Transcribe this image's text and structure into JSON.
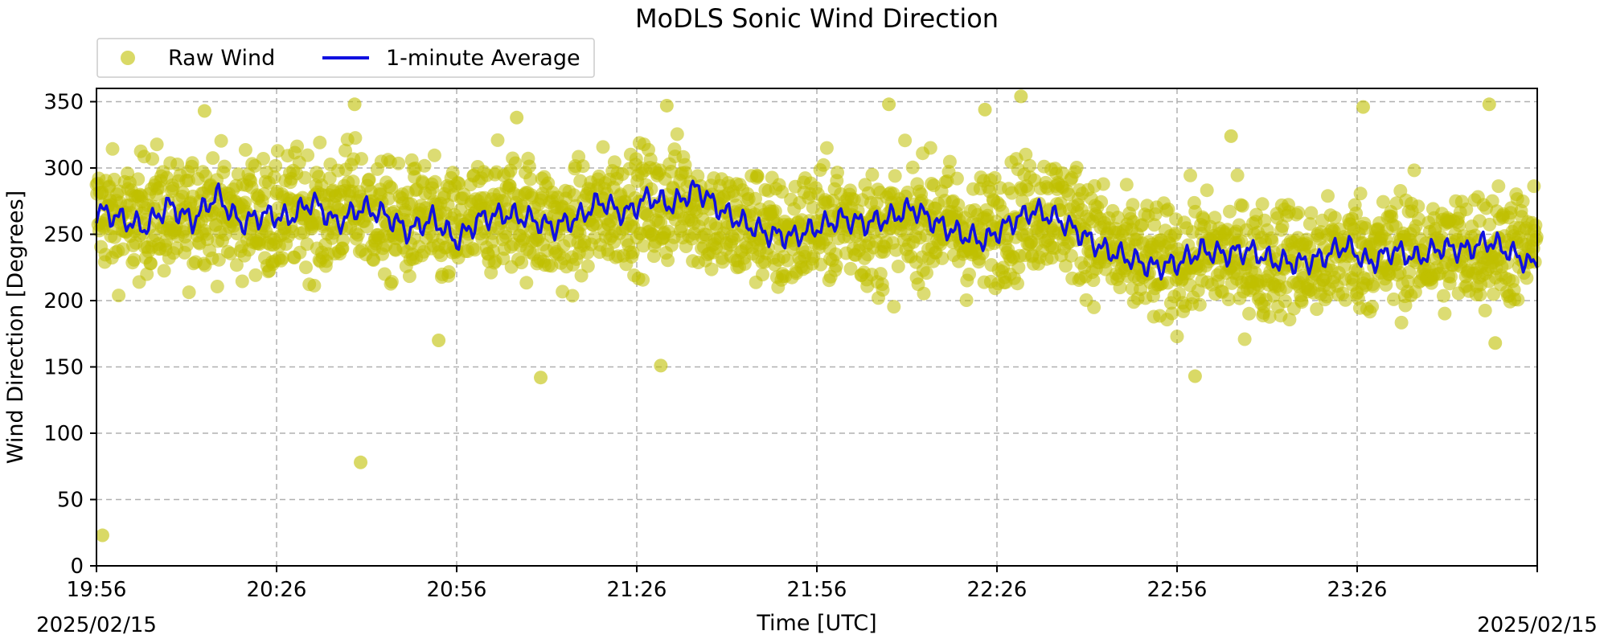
{
  "chart_data": {
    "type": "scatter",
    "title": "MoDLS Sonic Wind Direction",
    "xlabel": "Time [UTC]",
    "ylabel": "Wind Direction [Degrees]",
    "date_left": "2025/02/15",
    "date_right": "2025/02/15",
    "x_ticks": [
      "19:56",
      "20:26",
      "20:56",
      "21:26",
      "21:56",
      "22:26",
      "22:56",
      "23:26"
    ],
    "x_range": [
      "19:56",
      "23:56"
    ],
    "y_ticks": [
      0,
      50,
      100,
      150,
      200,
      250,
      300,
      350
    ],
    "ylim": [
      0,
      360
    ],
    "grid": true,
    "legend_position": "top-left",
    "series": [
      {
        "name": "Raw Wind",
        "kind": "scatter",
        "color": "#bfbf00",
        "x": [
          "19:58",
          "20:02",
          "20:06",
          "20:10",
          "20:14",
          "20:18",
          "20:22",
          "20:26",
          "20:30",
          "20:34",
          "20:38",
          "20:42",
          "20:46",
          "20:50",
          "20:54",
          "20:58",
          "21:02",
          "21:06",
          "21:10",
          "21:14",
          "21:18",
          "21:22",
          "21:26",
          "21:30",
          "21:34",
          "21:38",
          "21:42",
          "21:46",
          "21:50",
          "21:54",
          "21:58",
          "22:02",
          "22:06",
          "22:10",
          "22:14",
          "22:18",
          "22:22",
          "22:26",
          "22:30",
          "22:34",
          "22:38",
          "22:42",
          "22:46",
          "22:50",
          "22:54",
          "22:58",
          "23:02",
          "23:06",
          "23:10",
          "23:14",
          "23:18",
          "23:22",
          "23:26",
          "23:30",
          "23:34",
          "23:38",
          "23:42",
          "23:46",
          "23:50",
          "23:54"
        ],
        "y": [
          265,
          258,
          270,
          255,
          275,
          262,
          268,
          258,
          272,
          260,
          275,
          265,
          255,
          262,
          250,
          258,
          265,
          268,
          260,
          252,
          262,
          270,
          272,
          268,
          280,
          262,
          255,
          258,
          245,
          255,
          258,
          262,
          250,
          255,
          262,
          260,
          245,
          258,
          262,
          270,
          262,
          250,
          235,
          230,
          225,
          232,
          235,
          232,
          228,
          235,
          225,
          232,
          238,
          232,
          240,
          235,
          238,
          240,
          242,
          238
        ],
        "outliers": [
          {
            "x": "19:57",
            "y": 23
          },
          {
            "x": "20:14",
            "y": 343
          },
          {
            "x": "20:40",
            "y": 78
          },
          {
            "x": "20:39",
            "y": 348
          },
          {
            "x": "20:53",
            "y": 170
          },
          {
            "x": "21:10",
            "y": 142
          },
          {
            "x": "21:06",
            "y": 338
          },
          {
            "x": "21:30",
            "y": 151
          },
          {
            "x": "21:31",
            "y": 347
          },
          {
            "x": "22:08",
            "y": 348
          },
          {
            "x": "22:24",
            "y": 344
          },
          {
            "x": "22:30",
            "y": 354
          },
          {
            "x": "22:59",
            "y": 143
          },
          {
            "x": "23:05",
            "y": 324
          },
          {
            "x": "23:27",
            "y": 346
          },
          {
            "x": "23:48",
            "y": 348
          },
          {
            "x": "23:49",
            "y": 168
          }
        ]
      },
      {
        "name": "1-minute Average",
        "kind": "line",
        "color": "#1010e0",
        "x": [
          "19:56",
          "20:00",
          "20:04",
          "20:08",
          "20:12",
          "20:16",
          "20:20",
          "20:24",
          "20:28",
          "20:32",
          "20:36",
          "20:40",
          "20:44",
          "20:48",
          "20:52",
          "20:56",
          "21:00",
          "21:04",
          "21:08",
          "21:12",
          "21:16",
          "21:20",
          "21:24",
          "21:28",
          "21:32",
          "21:36",
          "21:40",
          "21:44",
          "21:48",
          "21:52",
          "21:56",
          "22:00",
          "22:04",
          "22:08",
          "22:12",
          "22:16",
          "22:20",
          "22:24",
          "22:28",
          "22:32",
          "22:36",
          "22:40",
          "22:44",
          "22:48",
          "22:52",
          "22:56",
          "23:00",
          "23:04",
          "23:08",
          "23:12",
          "23:16",
          "23:20",
          "23:24",
          "23:28",
          "23:32",
          "23:36",
          "23:40",
          "23:44",
          "23:48",
          "23:52",
          "23:56"
        ],
        "y": [
          268,
          262,
          255,
          272,
          260,
          280,
          258,
          265,
          262,
          275,
          258,
          270,
          265,
          252,
          262,
          245,
          262,
          265,
          262,
          255,
          262,
          275,
          265,
          278,
          272,
          285,
          268,
          258,
          250,
          248,
          255,
          262,
          258,
          262,
          270,
          258,
          250,
          245,
          258,
          268,
          262,
          250,
          238,
          232,
          225,
          228,
          238,
          235,
          238,
          230,
          228,
          232,
          242,
          228,
          238,
          232,
          240,
          238,
          245,
          235,
          225
        ]
      }
    ]
  }
}
